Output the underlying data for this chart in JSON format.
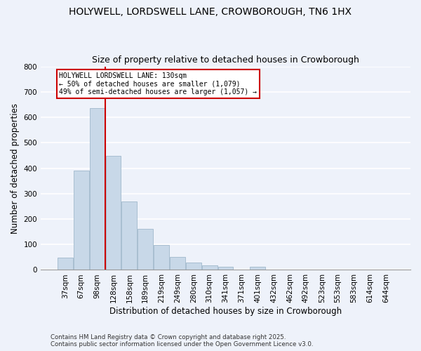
{
  "title": "HOLYWELL, LORDSWELL LANE, CROWBOROUGH, TN6 1HX",
  "subtitle": "Size of property relative to detached houses in Crowborough",
  "xlabel": "Distribution of detached houses by size in Crowborough",
  "ylabel": "Number of detached properties",
  "categories": [
    "37sqm",
    "67sqm",
    "98sqm",
    "128sqm",
    "158sqm",
    "189sqm",
    "219sqm",
    "249sqm",
    "280sqm",
    "310sqm",
    "341sqm",
    "371sqm",
    "401sqm",
    "432sqm",
    "462sqm",
    "492sqm",
    "523sqm",
    "553sqm",
    "583sqm",
    "614sqm",
    "644sqm"
  ],
  "values": [
    48,
    390,
    635,
    447,
    270,
    160,
    98,
    52,
    30,
    18,
    12,
    0,
    12,
    0,
    0,
    0,
    0,
    0,
    0,
    0,
    2
  ],
  "bar_color": "#c8d8e8",
  "bar_edge_color": "#a0b8cc",
  "vline_color": "#cc0000",
  "annotation_line1": "HOLYWELL LORDSWELL LANE: 130sqm",
  "annotation_line2": "← 50% of detached houses are smaller (1,079)",
  "annotation_line3": "49% of semi-detached houses are larger (1,057) →",
  "annotation_box_color": "#ffffff",
  "annotation_box_edge": "#cc0000",
  "ylim": [
    0,
    800
  ],
  "yticks": [
    0,
    100,
    200,
    300,
    400,
    500,
    600,
    700,
    800
  ],
  "background_color": "#eef2fa",
  "grid_color": "#ffffff",
  "title_fontsize": 10,
  "subtitle_fontsize": 9,
  "axis_label_fontsize": 8.5,
  "tick_fontsize": 7.5,
  "footer_line1": "Contains HM Land Registry data © Crown copyright and database right 2025.",
  "footer_line2": "Contains public sector information licensed under the Open Government Licence v3.0."
}
